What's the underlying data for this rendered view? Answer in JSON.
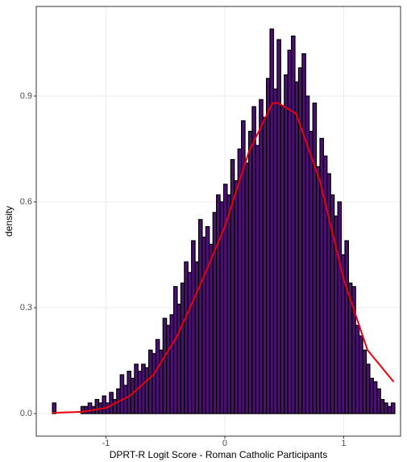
{
  "chart_data": {
    "type": "histogram",
    "x_label": "DPRT-R Logit Score - Roman Catholic Participants",
    "y_label": "density",
    "bins": [
      -1.45,
      -1.42,
      -1.39,
      -1.36,
      -1.33,
      -1.3,
      -1.27,
      -1.24,
      -1.21,
      -1.18,
      -1.15,
      -1.12,
      -1.09,
      -1.06,
      -1.03,
      -1.0,
      -0.97,
      -0.94,
      -0.91,
      -0.88,
      -0.85,
      -0.82,
      -0.79,
      -0.76,
      -0.73,
      -0.7,
      -0.67,
      -0.64,
      -0.61,
      -0.58,
      -0.55,
      -0.52,
      -0.49,
      -0.46,
      -0.43,
      -0.4,
      -0.37,
      -0.34,
      -0.31,
      -0.28,
      -0.25,
      -0.22,
      -0.19,
      -0.16,
      -0.13,
      -0.1,
      -0.07,
      -0.04,
      -0.01,
      0.02,
      0.05,
      0.08,
      0.11,
      0.14,
      0.17,
      0.2,
      0.23,
      0.26,
      0.29,
      0.32,
      0.35,
      0.38,
      0.41,
      0.44,
      0.47,
      0.5,
      0.53,
      0.56,
      0.59,
      0.62,
      0.65,
      0.68,
      0.71,
      0.74,
      0.77,
      0.8,
      0.83,
      0.86,
      0.89,
      0.92,
      0.95,
      0.98,
      1.01,
      1.04,
      1.07,
      1.1,
      1.13,
      1.16,
      1.19,
      1.22,
      1.25,
      1.28,
      1.31,
      1.34,
      1.37,
      1.4,
      1.43
    ],
    "values": [
      0.03,
      0,
      0,
      0,
      0,
      0,
      0,
      0,
      0.02,
      0.02,
      0.03,
      0.02,
      0.04,
      0.03,
      0.05,
      0.03,
      0.06,
      0.04,
      0.07,
      0.11,
      0.08,
      0.12,
      0.1,
      0.14,
      0.12,
      0.14,
      0.13,
      0.18,
      0.17,
      0.21,
      0.18,
      0.27,
      0.25,
      0.28,
      0.36,
      0.31,
      0.37,
      0.43,
      0.4,
      0.49,
      0.43,
      0.55,
      0.5,
      0.53,
      0.48,
      0.57,
      0.62,
      0.6,
      0.65,
      0.62,
      0.72,
      0.66,
      0.75,
      0.83,
      0.71,
      0.8,
      0.87,
      0.76,
      0.89,
      0.84,
      0.95,
      1.09,
      0.92,
      1.06,
      0.87,
      0.96,
      1.03,
      1.07,
      0.94,
      0.98,
      1.02,
      0.9,
      0.8,
      0.88,
      0.7,
      0.78,
      0.73,
      0.68,
      0.62,
      0.56,
      0.6,
      0.45,
      0.49,
      0.37,
      0.36,
      0.25,
      0.22,
      0.18,
      0.14,
      0.1,
      0.09,
      0.07,
      0.04,
      0.03,
      0.02,
      0.03
    ],
    "color": "#4a1170",
    "edge_color": "#000000",
    "density_curve": {
      "color": "#e8000b",
      "x": [
        -1.45,
        -1.2,
        -1.0,
        -0.8,
        -0.6,
        -0.4,
        -0.2,
        0,
        0.2,
        0.4,
        0.45,
        0.6,
        0.8,
        1.0,
        1.2,
        1.42
      ],
      "values": [
        0.002,
        0.005,
        0.016,
        0.05,
        0.11,
        0.22,
        0.37,
        0.53,
        0.74,
        0.88,
        0.88,
        0.85,
        0.66,
        0.38,
        0.18,
        0.09
      ]
    },
    "xlim": [
      -1.586,
      1.478
    ],
    "ylim": [
      -0.064,
      1.154
    ],
    "xticks": [
      -1,
      0,
      1
    ],
    "yticks": [
      {
        "value": 0,
        "label": "0.0"
      },
      0.3,
      0.6,
      0.9
    ],
    "grid": true
  }
}
